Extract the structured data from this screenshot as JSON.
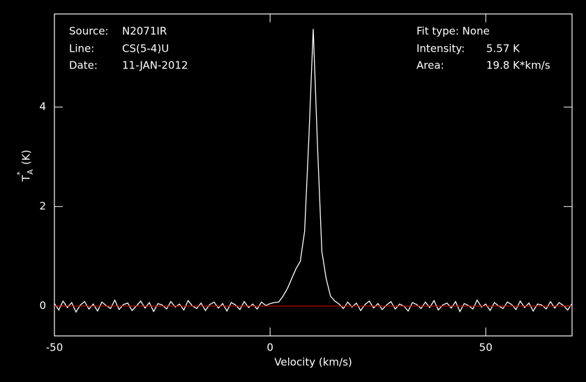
{
  "chart_data": {
    "type": "line",
    "x_label": "Velocity (km/s)",
    "y_label": {
      "main": "T",
      "sup": "*",
      "sub": "A",
      "unit": "(K)"
    },
    "info": {
      "source_label": "Source:",
      "source": "N2071IR",
      "line_label": "Line:",
      "line": "CS(5-4)U",
      "date_label": "Date:",
      "date": "11-JAN-2012",
      "fit": "Fit type: None",
      "intensity_label": "Intensity:",
      "intensity": "5.57 K",
      "area_label": "Area:",
      "area": "19.8 K*km/s"
    },
    "xlim": [
      -50,
      70
    ],
    "ylim": [
      -0.6,
      5.87
    ],
    "xticks": [
      -50,
      0,
      50
    ],
    "yticks": [
      0,
      2,
      4
    ],
    "baseline": {
      "value": 0,
      "color": "#c00000"
    },
    "x": [
      -50,
      -49,
      -48,
      -47,
      -46,
      -45,
      -44,
      -43,
      -42,
      -41,
      -40,
      -39,
      -38,
      -37,
      -36,
      -35,
      -34,
      -33,
      -32,
      -31,
      -30,
      -29,
      -28,
      -27,
      -26,
      -25,
      -24,
      -23,
      -22,
      -21,
      -20,
      -19,
      -18,
      -17,
      -16,
      -15,
      -14,
      -13,
      -12,
      -11,
      -10,
      -9,
      -8,
      -7,
      -6,
      -5,
      -4,
      -3,
      -2,
      -1,
      0,
      1,
      2,
      3,
      4,
      5,
      6,
      7,
      8,
      9,
      10,
      11,
      12,
      13,
      14,
      15,
      16,
      17,
      18,
      19,
      20,
      21,
      22,
      23,
      24,
      25,
      26,
      27,
      28,
      29,
      30,
      31,
      32,
      33,
      34,
      35,
      36,
      37,
      38,
      39,
      40,
      41,
      42,
      43,
      44,
      45,
      46,
      47,
      48,
      49,
      50,
      51,
      52,
      53,
      54,
      55,
      56,
      57,
      58,
      59,
      60,
      61,
      62,
      63,
      64,
      65,
      66,
      67,
      68,
      69,
      70
    ],
    "series": [
      {
        "color": "#ffffff",
        "values": [
          0.05,
          -0.08,
          0.1,
          -0.03,
          0.07,
          -0.12,
          0.02,
          0.09,
          -0.06,
          0.04,
          -0.1,
          0.08,
          0.01,
          -0.05,
          0.12,
          -0.07,
          0.03,
          0.06,
          -0.09,
          0.0,
          0.1,
          -0.04,
          0.07,
          -0.11,
          0.05,
          0.02,
          -0.06,
          0.09,
          -0.02,
          0.04,
          -0.08,
          0.11,
          0.0,
          -0.05,
          0.06,
          -0.09,
          0.03,
          0.08,
          -0.04,
          0.05,
          -0.1,
          0.07,
          0.02,
          -0.07,
          0.09,
          -0.03,
          0.04,
          -0.06,
          0.08,
          0.01,
          0.05,
          0.07,
          0.08,
          0.2,
          0.35,
          0.55,
          0.75,
          0.9,
          1.5,
          3.4,
          5.57,
          3.2,
          1.1,
          0.55,
          0.2,
          0.1,
          0.04,
          -0.05,
          0.08,
          -0.02,
          0.06,
          -0.09,
          0.03,
          0.1,
          -0.04,
          0.05,
          -0.07,
          0.02,
          0.09,
          -0.06,
          0.04,
          0.0,
          -0.1,
          0.07,
          0.03,
          -0.05,
          0.08,
          -0.03,
          0.11,
          -0.08,
          0.02,
          0.06,
          -0.04,
          0.09,
          -0.11,
          0.05,
          0.01,
          -0.06,
          0.12,
          -0.02,
          0.04,
          -0.09,
          0.07,
          0.0,
          -0.05,
          0.08,
          0.03,
          -0.07,
          0.1,
          -0.03,
          0.06,
          -0.1,
          0.04,
          0.02,
          -0.06,
          0.09,
          -0.04,
          0.07,
          0.01,
          -0.08,
          0.05
        ]
      }
    ]
  }
}
